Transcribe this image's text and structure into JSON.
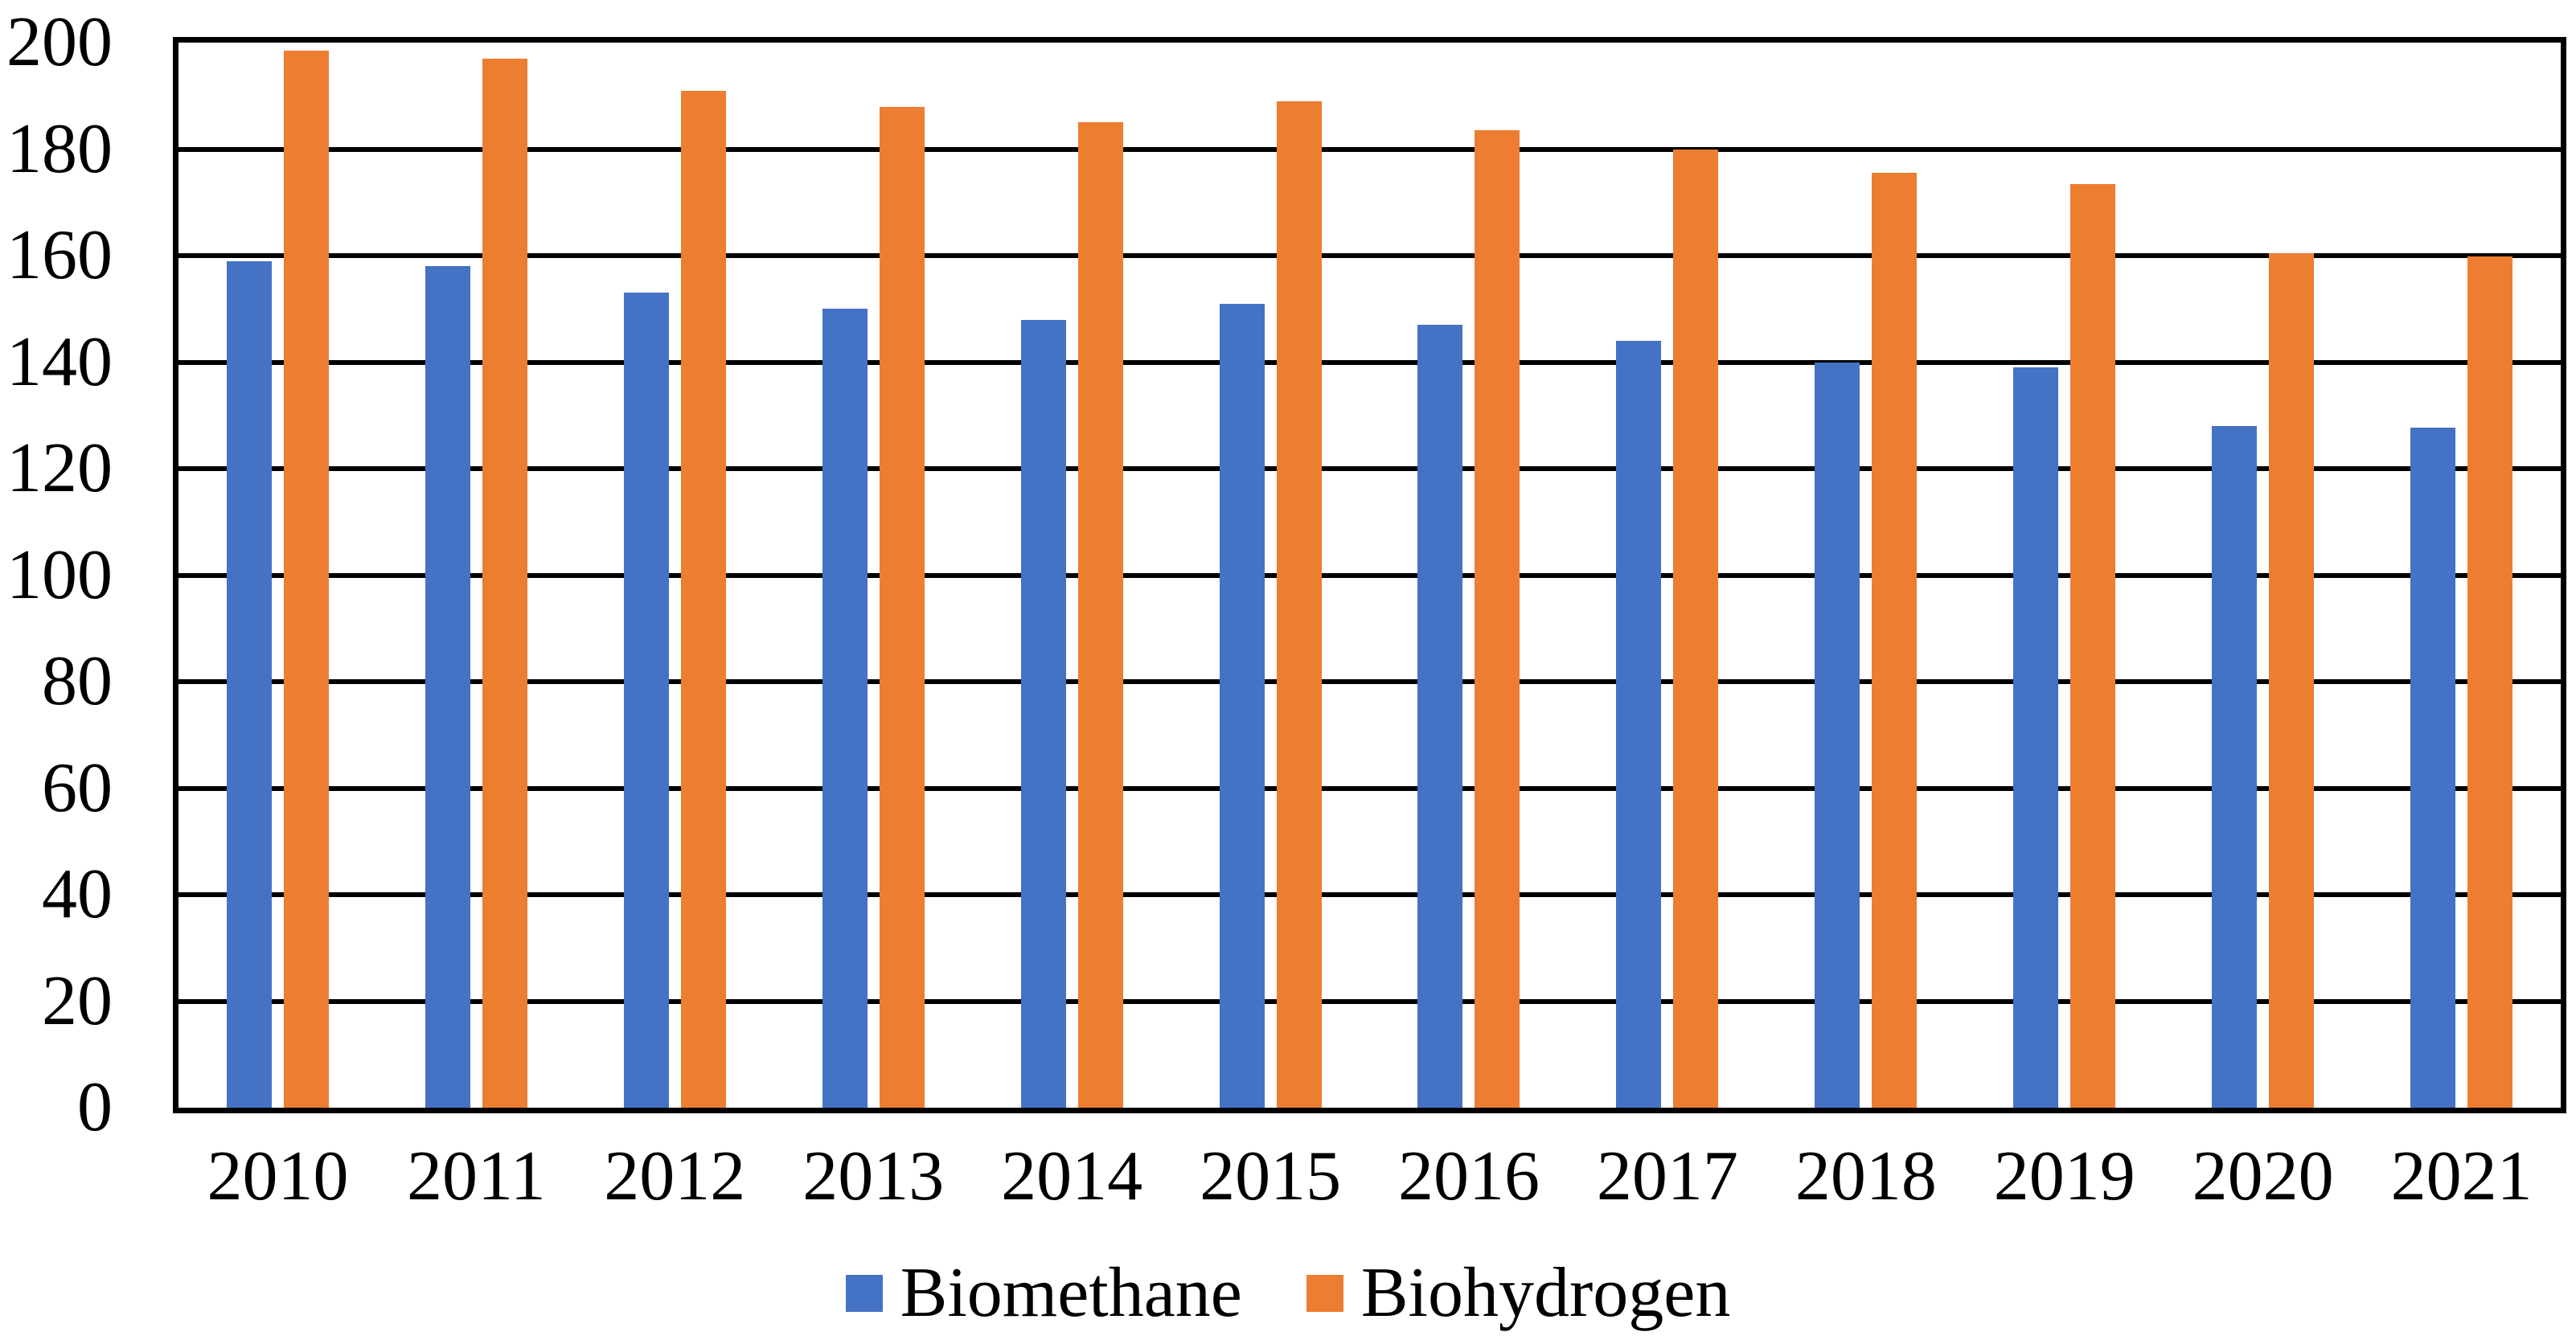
{
  "figure": {
    "background": "#ffffff",
    "frame_color": "#000000"
  },
  "chart_data": {
    "type": "bar",
    "title": "",
    "xlabel": "",
    "ylabel": "",
    "categories": [
      "2010",
      "2011",
      "2012",
      "2013",
      "2014",
      "2015",
      "2016",
      "2017",
      "2018",
      "2019",
      "2020",
      "2021"
    ],
    "series": [
      {
        "name": "Biomethane",
        "color": "#4472C4",
        "values": [
          159,
          158,
          153,
          150,
          148,
          151,
          147,
          144,
          140,
          139,
          128,
          127.7
        ]
      },
      {
        "name": "Biohydrogen",
        "color": "#ED7D31",
        "values": [
          198.5,
          197,
          191,
          188,
          185,
          189,
          183.5,
          180,
          175.5,
          173.5,
          160.5,
          159.8
        ]
      }
    ],
    "ylim": [
      0,
      200
    ],
    "y_tick_step": 20,
    "y_ticks": [
      "0",
      "20",
      "40",
      "60",
      "80",
      "100",
      "120",
      "140",
      "160",
      "180",
      "200"
    ],
    "grid": true,
    "gridline_color": "#000000",
    "axis_color": "#000000",
    "legend_position": "bottom"
  }
}
